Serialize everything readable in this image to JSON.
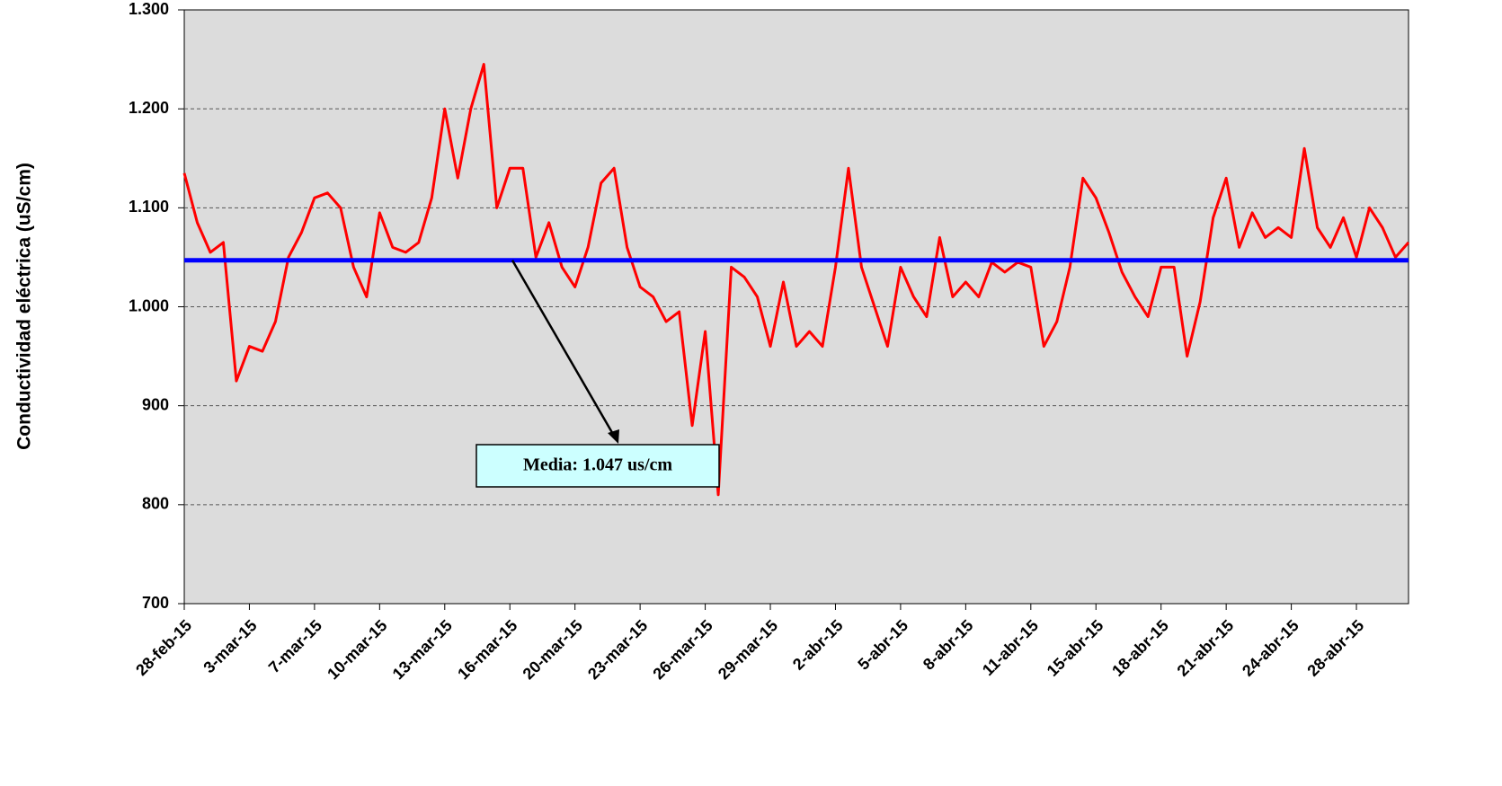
{
  "chart_data": {
    "type": "line",
    "y_label": "Conductividad eléctrica (uS/cm)",
    "categories": [
      "28-feb-15",
      null,
      null,
      null,
      null,
      "3-mar-15",
      null,
      null,
      null,
      null,
      "7-mar-15",
      null,
      null,
      null,
      null,
      "10-mar-15",
      null,
      null,
      null,
      null,
      "13-mar-15",
      null,
      null,
      null,
      null,
      "16-mar-15",
      null,
      null,
      null,
      null,
      "20-mar-15",
      null,
      null,
      null,
      null,
      "23-mar-15",
      null,
      null,
      null,
      null,
      "26-mar-15",
      null,
      null,
      null,
      null,
      "29-mar-15",
      null,
      null,
      null,
      null,
      "2-abr-15",
      null,
      null,
      null,
      null,
      "5-abr-15",
      null,
      null,
      null,
      null,
      "8-abr-15",
      null,
      null,
      null,
      null,
      "11-abr-15",
      null,
      null,
      null,
      null,
      "15-abr-15",
      null,
      null,
      null,
      null,
      "18-abr-15",
      null,
      null,
      null,
      null,
      "21-abr-15",
      null,
      null,
      null,
      null,
      "24-abr-15",
      null,
      null,
      null,
      null,
      "28-abr-15",
      null,
      null,
      null,
      null
    ],
    "values": [
      1135,
      1085,
      1055,
      1065,
      925,
      960,
      955,
      985,
      1050,
      1075,
      1110,
      1115,
      1100,
      1040,
      1010,
      1095,
      1060,
      1055,
      1065,
      1110,
      1200,
      1130,
      1200,
      1245,
      1100,
      1140,
      1140,
      1050,
      1085,
      1040,
      1020,
      1060,
      1125,
      1140,
      1060,
      1020,
      1010,
      985,
      995,
      880,
      975,
      810,
      1040,
      1030,
      1010,
      960,
      1025,
      960,
      975,
      960,
      1040,
      1140,
      1040,
      1000,
      960,
      1040,
      1010,
      990,
      1070,
      1010,
      1025,
      1010,
      1045,
      1035,
      1045,
      1040,
      960,
      985,
      1040,
      1130,
      1110,
      1075,
      1035,
      1010,
      990,
      1040,
      1040,
      950,
      1005,
      1090,
      1130,
      1060,
      1095,
      1070,
      1080,
      1070,
      1160,
      1080,
      1060,
      1090,
      1050,
      1100,
      1080,
      1050,
      1065
    ],
    "color": "#ff0000",
    "mean": {
      "value": 1047,
      "color": "#0000ff"
    },
    "annotation": "Media: 1.047 us/cm",
    "ylim": [
      700,
      1300
    ],
    "yticks": [
      700,
      800,
      900,
      {
        "value": 1000,
        "label": "1.000"
      },
      {
        "value": 1100,
        "label": "1.100"
      },
      {
        "value": 1200,
        "label": "1.200"
      },
      {
        "value": 1300,
        "label": "1.300"
      }
    ],
    "grid": true
  }
}
